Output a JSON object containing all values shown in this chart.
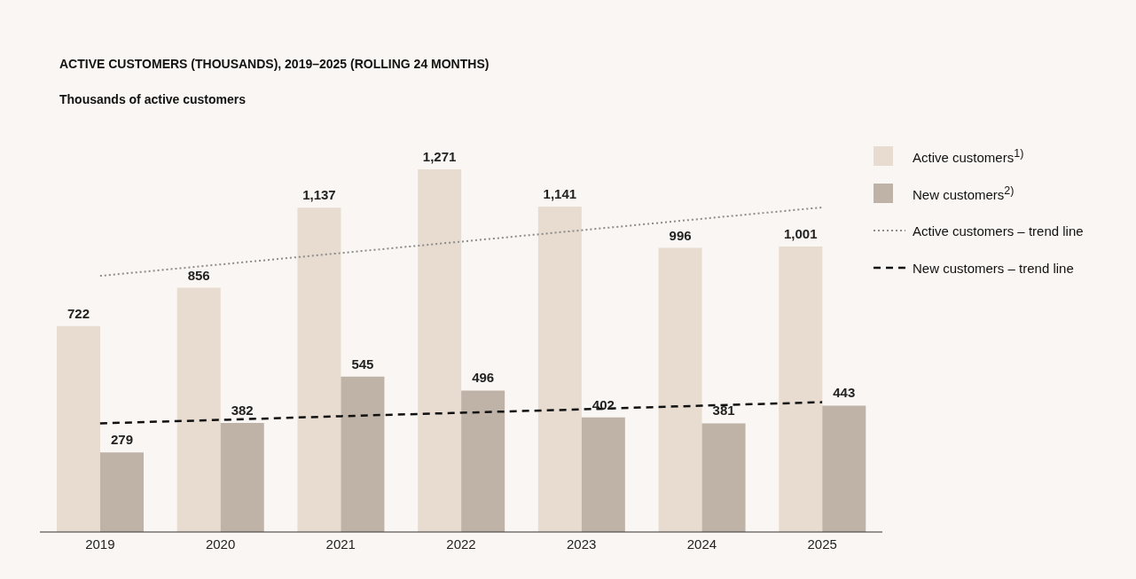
{
  "chart_data": {
    "type": "bar",
    "title": "ACTIVE CUSTOMERS (THOUSANDS), 2019–2025 (ROLLING 24 MONTHS)",
    "subtitle": "Thousands of active customers",
    "categories": [
      "2019",
      "2020",
      "2021",
      "2022",
      "2023",
      "2024",
      "2025"
    ],
    "legend": "right",
    "series": [
      {
        "name": "Active customers$^{1)}$",
        "color": "#e8dcd1",
        "values": [
          722,
          856,
          1137,
          1271,
          1141,
          996,
          1001
        ],
        "value_labels": [
          "722",
          "856",
          "1,137",
          "1,271",
          "1,141",
          "996",
          "1,001"
        ]
      },
      {
        "name": "New customers$^{2)}$",
        "color": "#bfb3a7",
        "values": [
          279,
          382,
          545,
          496,
          402,
          381,
          443
        ],
        "value_labels": [
          "279",
          "382",
          "545",
          "496",
          "402",
          "381",
          "443"
        ]
      },
      {
        "name": "Active customers – trend line",
        "type": "line",
        "color": "#8c8c8c",
        "line_style": "dotted",
        "values": [
          898,
          938,
          978,
          1018,
          1058,
          1098,
          1138
        ]
      },
      {
        "name": "New customers – trend line",
        "type": "line",
        "color": "#111111",
        "line_style": "dashed",
        "values": [
          381,
          393,
          406,
          418,
          430,
          443,
          455
        ]
      }
    ]
  }
}
